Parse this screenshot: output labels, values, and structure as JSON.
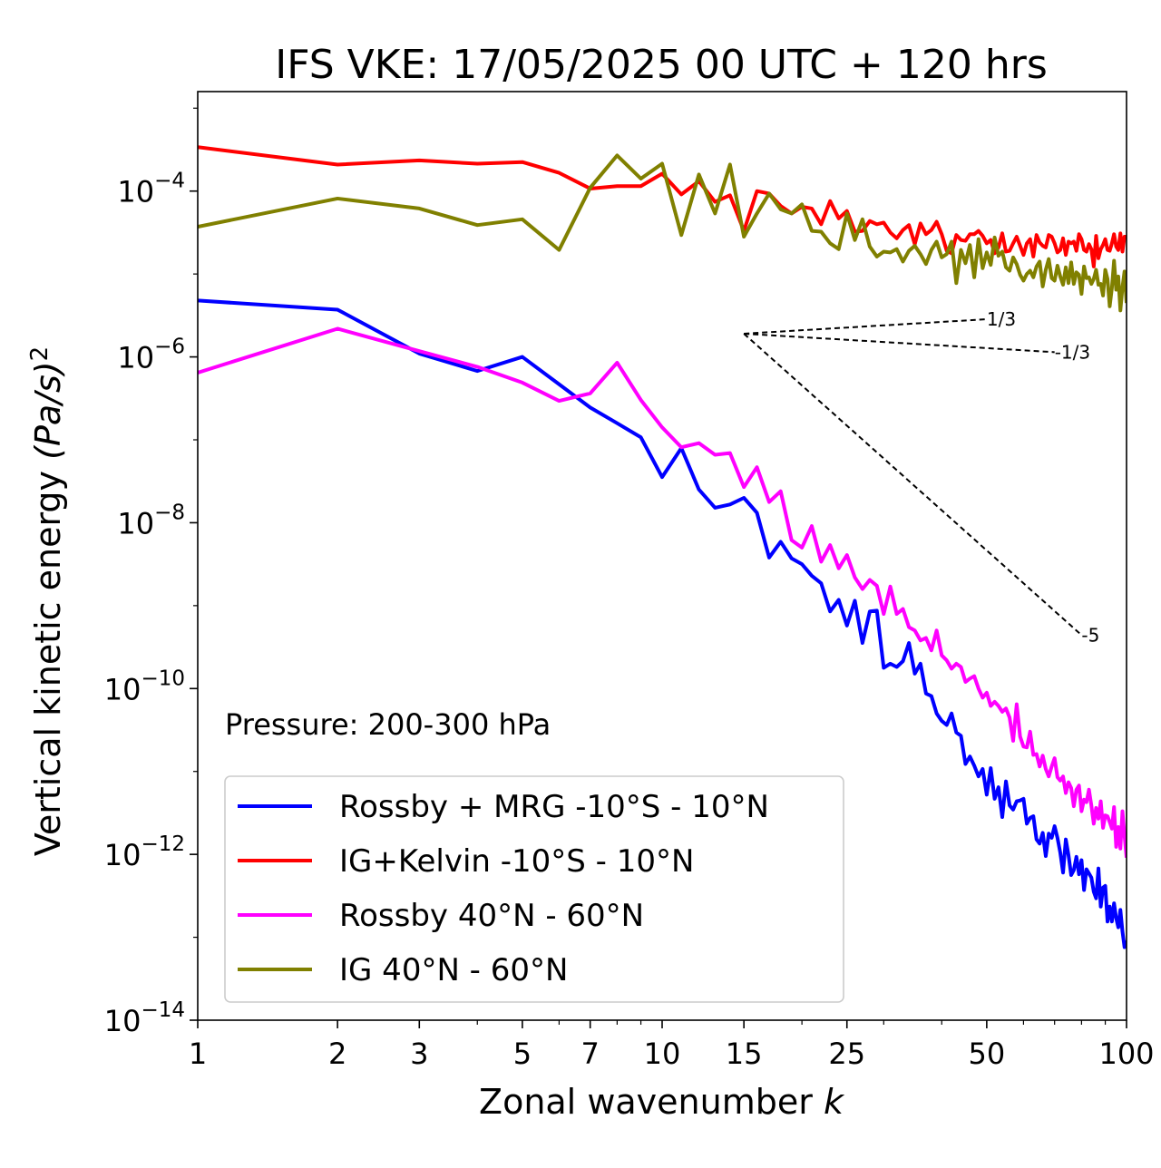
{
  "chart_data": {
    "type": "line",
    "title": "IFS VKE: 17/05/2025 00 UTC + 120 hrs",
    "xlabel": "Zonal wavenumber",
    "xlabel_var": "k",
    "ylabel": "Vertical kinetic energy",
    "ylabel_unit": "(Pa/s)",
    "ylabel_unit_exp": "2",
    "xscale": "log",
    "yscale": "log",
    "xlim": [
      1,
      100
    ],
    "ylim_exp": [
      -14,
      -2.8
    ],
    "x_ticks": [
      {
        "value": 1,
        "label": "1"
      },
      {
        "value": 2,
        "label": "2"
      },
      {
        "value": 3,
        "label": "3"
      },
      {
        "value": 5,
        "label": "5"
      },
      {
        "value": 7,
        "label": "7"
      },
      {
        "value": 10,
        "label": "10"
      },
      {
        "value": 15,
        "label": "15"
      },
      {
        "value": 25,
        "label": "25"
      },
      {
        "value": 50,
        "label": "50"
      },
      {
        "value": 100,
        "label": "100"
      }
    ],
    "y_ticks": [
      {
        "exp": -4,
        "base": "10",
        "sup": "−4"
      },
      {
        "exp": -6,
        "base": "10",
        "sup": "−6"
      },
      {
        "exp": -8,
        "base": "10",
        "sup": "−8"
      },
      {
        "exp": -10,
        "base": "10",
        "sup": "−10"
      },
      {
        "exp": -12,
        "base": "10",
        "sup": "−12"
      },
      {
        "exp": -14,
        "base": "10",
        "sup": "−14"
      }
    ],
    "annotation": "Pressure: 200-300 hPa",
    "legend_position": "lower-left",
    "grid": false,
    "series": [
      {
        "name": "Rossby + MRG -10°S - 10°N",
        "color": "#0000ff",
        "log10_values": [
          -5.32,
          -5.43,
          -5.96,
          -6.17,
          -6.0,
          -6.33,
          -6.61,
          -6.8,
          -6.97,
          -7.45,
          -7.1,
          -7.6,
          -7.82,
          -7.78,
          -7.7,
          -7.88,
          -8.42,
          -8.23,
          -8.43,
          -8.5,
          -8.64,
          -8.73,
          -9.07,
          -8.93,
          -9.24,
          -8.94,
          -9.45,
          -9.07,
          -9.06,
          -9.75,
          -9.7,
          -9.74,
          -9.67,
          -9.45,
          -9.82,
          -9.7,
          -10.06,
          -10.09,
          -10.3,
          -10.39,
          -10.44,
          -10.3,
          -10.53,
          -10.57,
          -10.91,
          -10.82,
          -10.93,
          -11.06,
          -10.97,
          -11.28,
          -10.96,
          -11.33,
          -11.19,
          -11.55,
          -11.12,
          -11.41,
          -11.46,
          -11.36,
          -11.35,
          -11.33,
          -11.63,
          -11.56,
          -11.54,
          -11.82,
          -11.87,
          -11.74,
          -12.02,
          -11.75,
          -11.8,
          -11.66,
          -11.8,
          -11.98,
          -12.22,
          -11.82,
          -12.01,
          -12.25,
          -12.19,
          -12.03,
          -12.24,
          -12.07,
          -12.43,
          -12.18,
          -12.23,
          -12.28,
          -12.45,
          -12.53,
          -12.17,
          -12.63,
          -12.4,
          -12.38,
          -12.81,
          -12.63,
          -12.81,
          -12.59,
          -12.77,
          -12.88,
          -12.67,
          -12.93,
          -13.12,
          -13.04
        ]
      },
      {
        "name": "IG+Kelvin -10°S - 10°N",
        "color": "#ff0000",
        "log10_values": [
          -3.47,
          -3.68,
          -3.63,
          -3.67,
          -3.65,
          -3.78,
          -3.97,
          -3.94,
          -3.94,
          -3.79,
          -4.04,
          -3.88,
          -4.13,
          -4.05,
          -4.48,
          -4.0,
          -4.03,
          -4.18,
          -4.27,
          -4.19,
          -4.21,
          -4.4,
          -4.12,
          -4.33,
          -4.24,
          -4.49,
          -4.48,
          -4.36,
          -4.4,
          -4.38,
          -4.5,
          -4.57,
          -4.47,
          -4.41,
          -4.64,
          -4.39,
          -4.52,
          -4.47,
          -4.37,
          -4.52,
          -4.72,
          -4.75,
          -4.53,
          -4.59,
          -4.6,
          -4.52,
          -4.52,
          -4.48,
          -4.54,
          -4.63,
          -4.59,
          -4.75,
          -4.68,
          -4.51,
          -4.73,
          -4.72,
          -4.63,
          -4.55,
          -4.66,
          -4.77,
          -4.63,
          -4.58,
          -4.79,
          -4.53,
          -4.62,
          -4.66,
          -4.68,
          -4.53,
          -4.55,
          -4.63,
          -4.74,
          -4.71,
          -4.57,
          -4.77,
          -4.61,
          -4.63,
          -4.61,
          -4.72,
          -4.52,
          -4.58,
          -4.71,
          -4.73,
          -4.64,
          -4.7,
          -4.91,
          -4.54,
          -4.81,
          -4.7,
          -4.65,
          -4.58,
          -4.71,
          -4.72,
          -4.63,
          -4.52,
          -4.67,
          -4.71,
          -4.51,
          -4.73,
          -4.55,
          -4.55
        ]
      },
      {
        "name": "Rossby 40°N - 60°N",
        "color": "#ff00ff",
        "log10_values": [
          -6.19,
          -5.66,
          -5.93,
          -6.12,
          -6.31,
          -6.53,
          -6.44,
          -6.07,
          -6.52,
          -6.85,
          -7.09,
          -7.04,
          -7.18,
          -7.16,
          -7.57,
          -7.33,
          -7.75,
          -7.62,
          -8.21,
          -8.3,
          -8.04,
          -8.47,
          -8.27,
          -8.55,
          -8.39,
          -8.66,
          -8.8,
          -8.69,
          -8.76,
          -9.1,
          -8.77,
          -9.1,
          -9.04,
          -9.26,
          -9.3,
          -9.42,
          -9.39,
          -9.54,
          -9.3,
          -9.6,
          -9.66,
          -9.76,
          -9.7,
          -9.74,
          -9.92,
          -9.88,
          -9.85,
          -10.0,
          -10.11,
          -10.05,
          -10.21,
          -10.16,
          -10.21,
          -10.28,
          -10.24,
          -10.35,
          -10.63,
          -10.19,
          -10.58,
          -10.7,
          -10.71,
          -10.52,
          -10.8,
          -10.79,
          -10.94,
          -10.81,
          -10.97,
          -11.06,
          -10.94,
          -10.84,
          -11.07,
          -11.11,
          -11.06,
          -11.26,
          -11.13,
          -11.2,
          -11.42,
          -11.22,
          -11.17,
          -11.48,
          -11.34,
          -11.37,
          -11.22,
          -11.41,
          -11.63,
          -11.44,
          -11.57,
          -11.36,
          -11.68,
          -11.53,
          -11.54,
          -11.61,
          -11.69,
          -11.43,
          -11.91,
          -11.67,
          -11.93,
          -11.48,
          -11.77,
          -12.04
        ]
      },
      {
        "name": "IG 40°N - 60°N",
        "color": "#808000",
        "log10_values": [
          -4.43,
          -4.09,
          -4.21,
          -4.41,
          -4.34,
          -4.71,
          -3.96,
          -3.57,
          -3.85,
          -3.67,
          -4.53,
          -3.8,
          -4.27,
          -3.68,
          -4.55,
          -4.27,
          -4.03,
          -4.22,
          -4.27,
          -4.16,
          -4.48,
          -4.49,
          -4.63,
          -4.7,
          -4.27,
          -4.59,
          -4.34,
          -4.67,
          -4.79,
          -4.73,
          -4.74,
          -4.7,
          -4.85,
          -4.72,
          -4.66,
          -4.76,
          -4.88,
          -4.71,
          -4.61,
          -4.8,
          -4.76,
          -4.61,
          -5.11,
          -4.71,
          -4.87,
          -4.65,
          -5.04,
          -4.58,
          -4.93,
          -4.74,
          -4.89,
          -4.56,
          -4.78,
          -4.73,
          -4.92,
          -4.96,
          -4.8,
          -4.88,
          -5.01,
          -5.08,
          -5.0,
          -4.96,
          -5.04,
          -4.91,
          -4.85,
          -5.15,
          -4.95,
          -4.82,
          -5.05,
          -5.08,
          -4.9,
          -5.03,
          -5.13,
          -4.92,
          -5.11,
          -4.86,
          -5.12,
          -4.98,
          -5.01,
          -5.24,
          -4.91,
          -5.05,
          -5.04,
          -5.12,
          -5.06,
          -4.95,
          -5.13,
          -5.12,
          -5.26,
          -4.95,
          -5.06,
          -5.39,
          -5.17,
          -4.84,
          -5.19,
          -5.03,
          -5.44,
          -5.16,
          -4.97,
          -5.35
        ]
      }
    ],
    "reference_slopes": [
      {
        "label": "-1/3",
        "from_k": 15,
        "to_k": 70,
        "from_exp": -5.72,
        "slope": -0.3333
      },
      {
        "label": "1/3",
        "from_k": 15,
        "to_k": 50,
        "from_exp": -5.72,
        "slope": 0.3333
      },
      {
        "label": "-5",
        "from_k": 15,
        "to_k": 80,
        "from_exp": -5.72,
        "slope": -5
      }
    ]
  }
}
